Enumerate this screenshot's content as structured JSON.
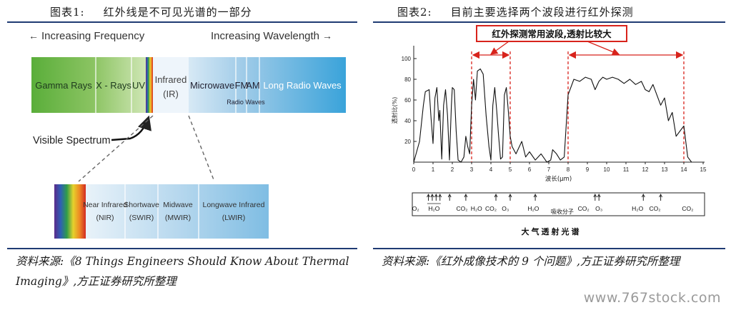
{
  "figure1": {
    "number": "图表1:",
    "title": "红外线是不可见光谱的一部分",
    "top_left_label": "Increasing Frequency",
    "top_right_label": "Increasing Wavelength",
    "bands": {
      "gamma": "Gamma Rays",
      "xray": "X - Rays",
      "uv": "UV",
      "ir_line1": "Infrared",
      "ir_line2": "(IR)",
      "microwave": "Microwave",
      "fm": "FM",
      "am": "AM",
      "radio_waves": "Radio Waves",
      "long_radio": "Long Radio Waves"
    },
    "visible_label": "Visible Spectrum",
    "ir_subbands": [
      {
        "line1": "Near Infrared",
        "line2": "(NIR)"
      },
      {
        "line1": "Shortwave",
        "line2": "(SWIR)"
      },
      {
        "line1": "Midwave",
        "line2": "(MWIR)"
      },
      {
        "line1": "Longwave Infrared",
        "line2": "(LWIR)"
      }
    ],
    "source": "资料来源:《8 Things Engineers Should Know About Thermal Imaging》,方正证券研究所整理"
  },
  "figure2": {
    "number": "图表2:",
    "title": "目前主要选择两个波段进行红外探测",
    "annotation": "红外探测常用波段,透射比较大",
    "ylabel": "透射比(%)",
    "xlabel": "波长(μm)",
    "bottom_label": "大气透射光谱",
    "absorber_label": "吸收分子",
    "molecules": [
      "O₂",
      "H₂O",
      "CO₂",
      "H₂O",
      "CO₂",
      "O₃",
      "H₂O",
      "CO₂",
      "O₃",
      "H₂O",
      "CO₂",
      "CO₂"
    ],
    "source": "资料来源:《红外成像技术的 9 个问题》,方正证券研究所整理"
  },
  "chart_data": {
    "type": "line",
    "title": "",
    "xlabel": "波长(μm)",
    "ylabel": "透射比(%)",
    "xlim": [
      0,
      15
    ],
    "ylim": [
      0,
      100
    ],
    "x_ticks": [
      0,
      1,
      2,
      3,
      4,
      5,
      6,
      7,
      8,
      9,
      10,
      11,
      12,
      13,
      14,
      15
    ],
    "y_ticks": [
      20,
      40,
      60,
      80,
      100
    ],
    "grid": false,
    "highlight_bands": [
      [
        3,
        5
      ],
      [
        8,
        14
      ]
    ],
    "x": [
      0,
      0.3,
      0.5,
      0.6,
      0.8,
      0.9,
      1.0,
      1.1,
      1.2,
      1.3,
      1.35,
      1.45,
      1.55,
      1.65,
      1.75,
      1.85,
      1.95,
      2.0,
      2.1,
      2.2,
      2.3,
      2.45,
      2.6,
      2.7,
      2.8,
      2.9,
      3.0,
      3.1,
      3.2,
      3.3,
      3.45,
      3.6,
      3.75,
      3.9,
      4.0,
      4.1,
      4.2,
      4.3,
      4.4,
      4.5,
      4.6,
      4.7,
      4.8,
      4.9,
      5.0,
      5.1,
      5.3,
      5.6,
      5.8,
      6.0,
      6.3,
      6.6,
      6.9,
      7.1,
      7.2,
      7.4,
      7.6,
      7.8,
      8.0,
      8.3,
      8.6,
      8.9,
      9.2,
      9.4,
      9.6,
      9.8,
      10.0,
      10.3,
      10.6,
      10.9,
      11.2,
      11.5,
      11.8,
      12.0,
      12.2,
      12.4,
      12.6,
      12.8,
      13.0,
      13.2,
      13.4,
      13.6,
      13.8,
      14.0,
      14.2,
      14.4
    ],
    "y": [
      0,
      20,
      55,
      68,
      70,
      42,
      18,
      62,
      72,
      40,
      50,
      3,
      55,
      70,
      45,
      2,
      55,
      72,
      70,
      30,
      2,
      0,
      5,
      25,
      15,
      8,
      55,
      80,
      60,
      88,
      90,
      85,
      45,
      15,
      2,
      55,
      72,
      50,
      25,
      3,
      5,
      65,
      72,
      50,
      25,
      15,
      8,
      20,
      5,
      10,
      2,
      8,
      0,
      2,
      12,
      8,
      2,
      5,
      65,
      80,
      78,
      82,
      80,
      70,
      78,
      82,
      80,
      82,
      80,
      76,
      80,
      75,
      78,
      70,
      68,
      75,
      65,
      55,
      62,
      40,
      48,
      25,
      30,
      35,
      5,
      0
    ]
  }
}
